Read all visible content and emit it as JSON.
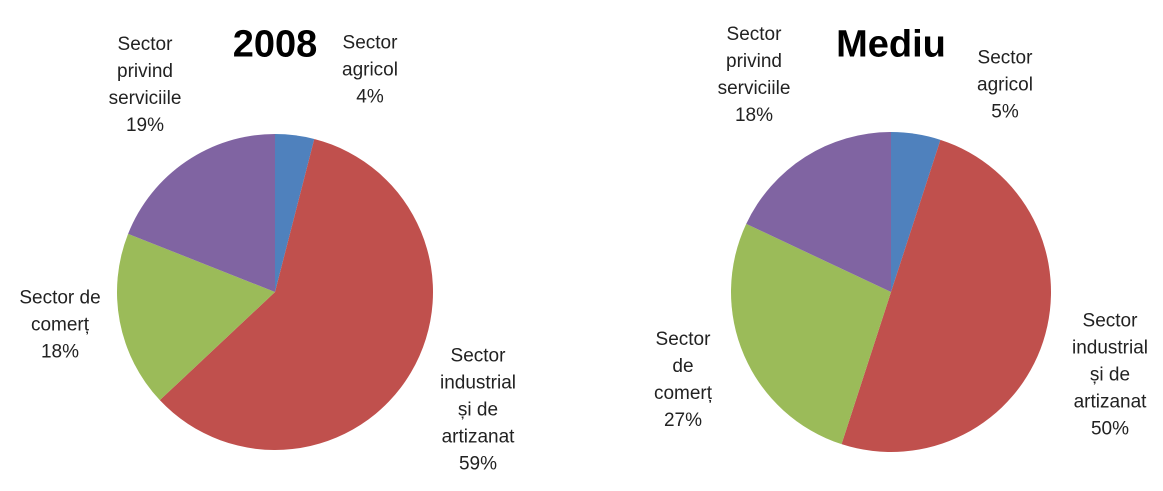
{
  "chart_data": [
    {
      "type": "pie",
      "title": "2008",
      "categories": [
        "Sector agricol",
        "Sector industrial și de artizanat",
        "Sector de comerț",
        "Sector privind serviciile"
      ],
      "values": [
        4,
        59,
        18,
        19
      ],
      "value_labels": [
        "4%",
        "59%",
        "18%",
        "19%"
      ],
      "colors": [
        "#4f81bd",
        "#c0504d",
        "#9bbb59",
        "#8064a2"
      ]
    },
    {
      "type": "pie",
      "title": "Mediu",
      "categories": [
        "Sector agricol",
        "Sector industrial și de artizanat",
        "Sector de comerț",
        "Sector privind serviciile"
      ],
      "values": [
        5,
        50,
        27,
        18
      ],
      "value_labels": [
        "5%",
        "50%",
        "27%",
        "18%"
      ],
      "colors": [
        "#4f81bd",
        "#c0504d",
        "#9bbb59",
        "#8064a2"
      ]
    }
  ]
}
